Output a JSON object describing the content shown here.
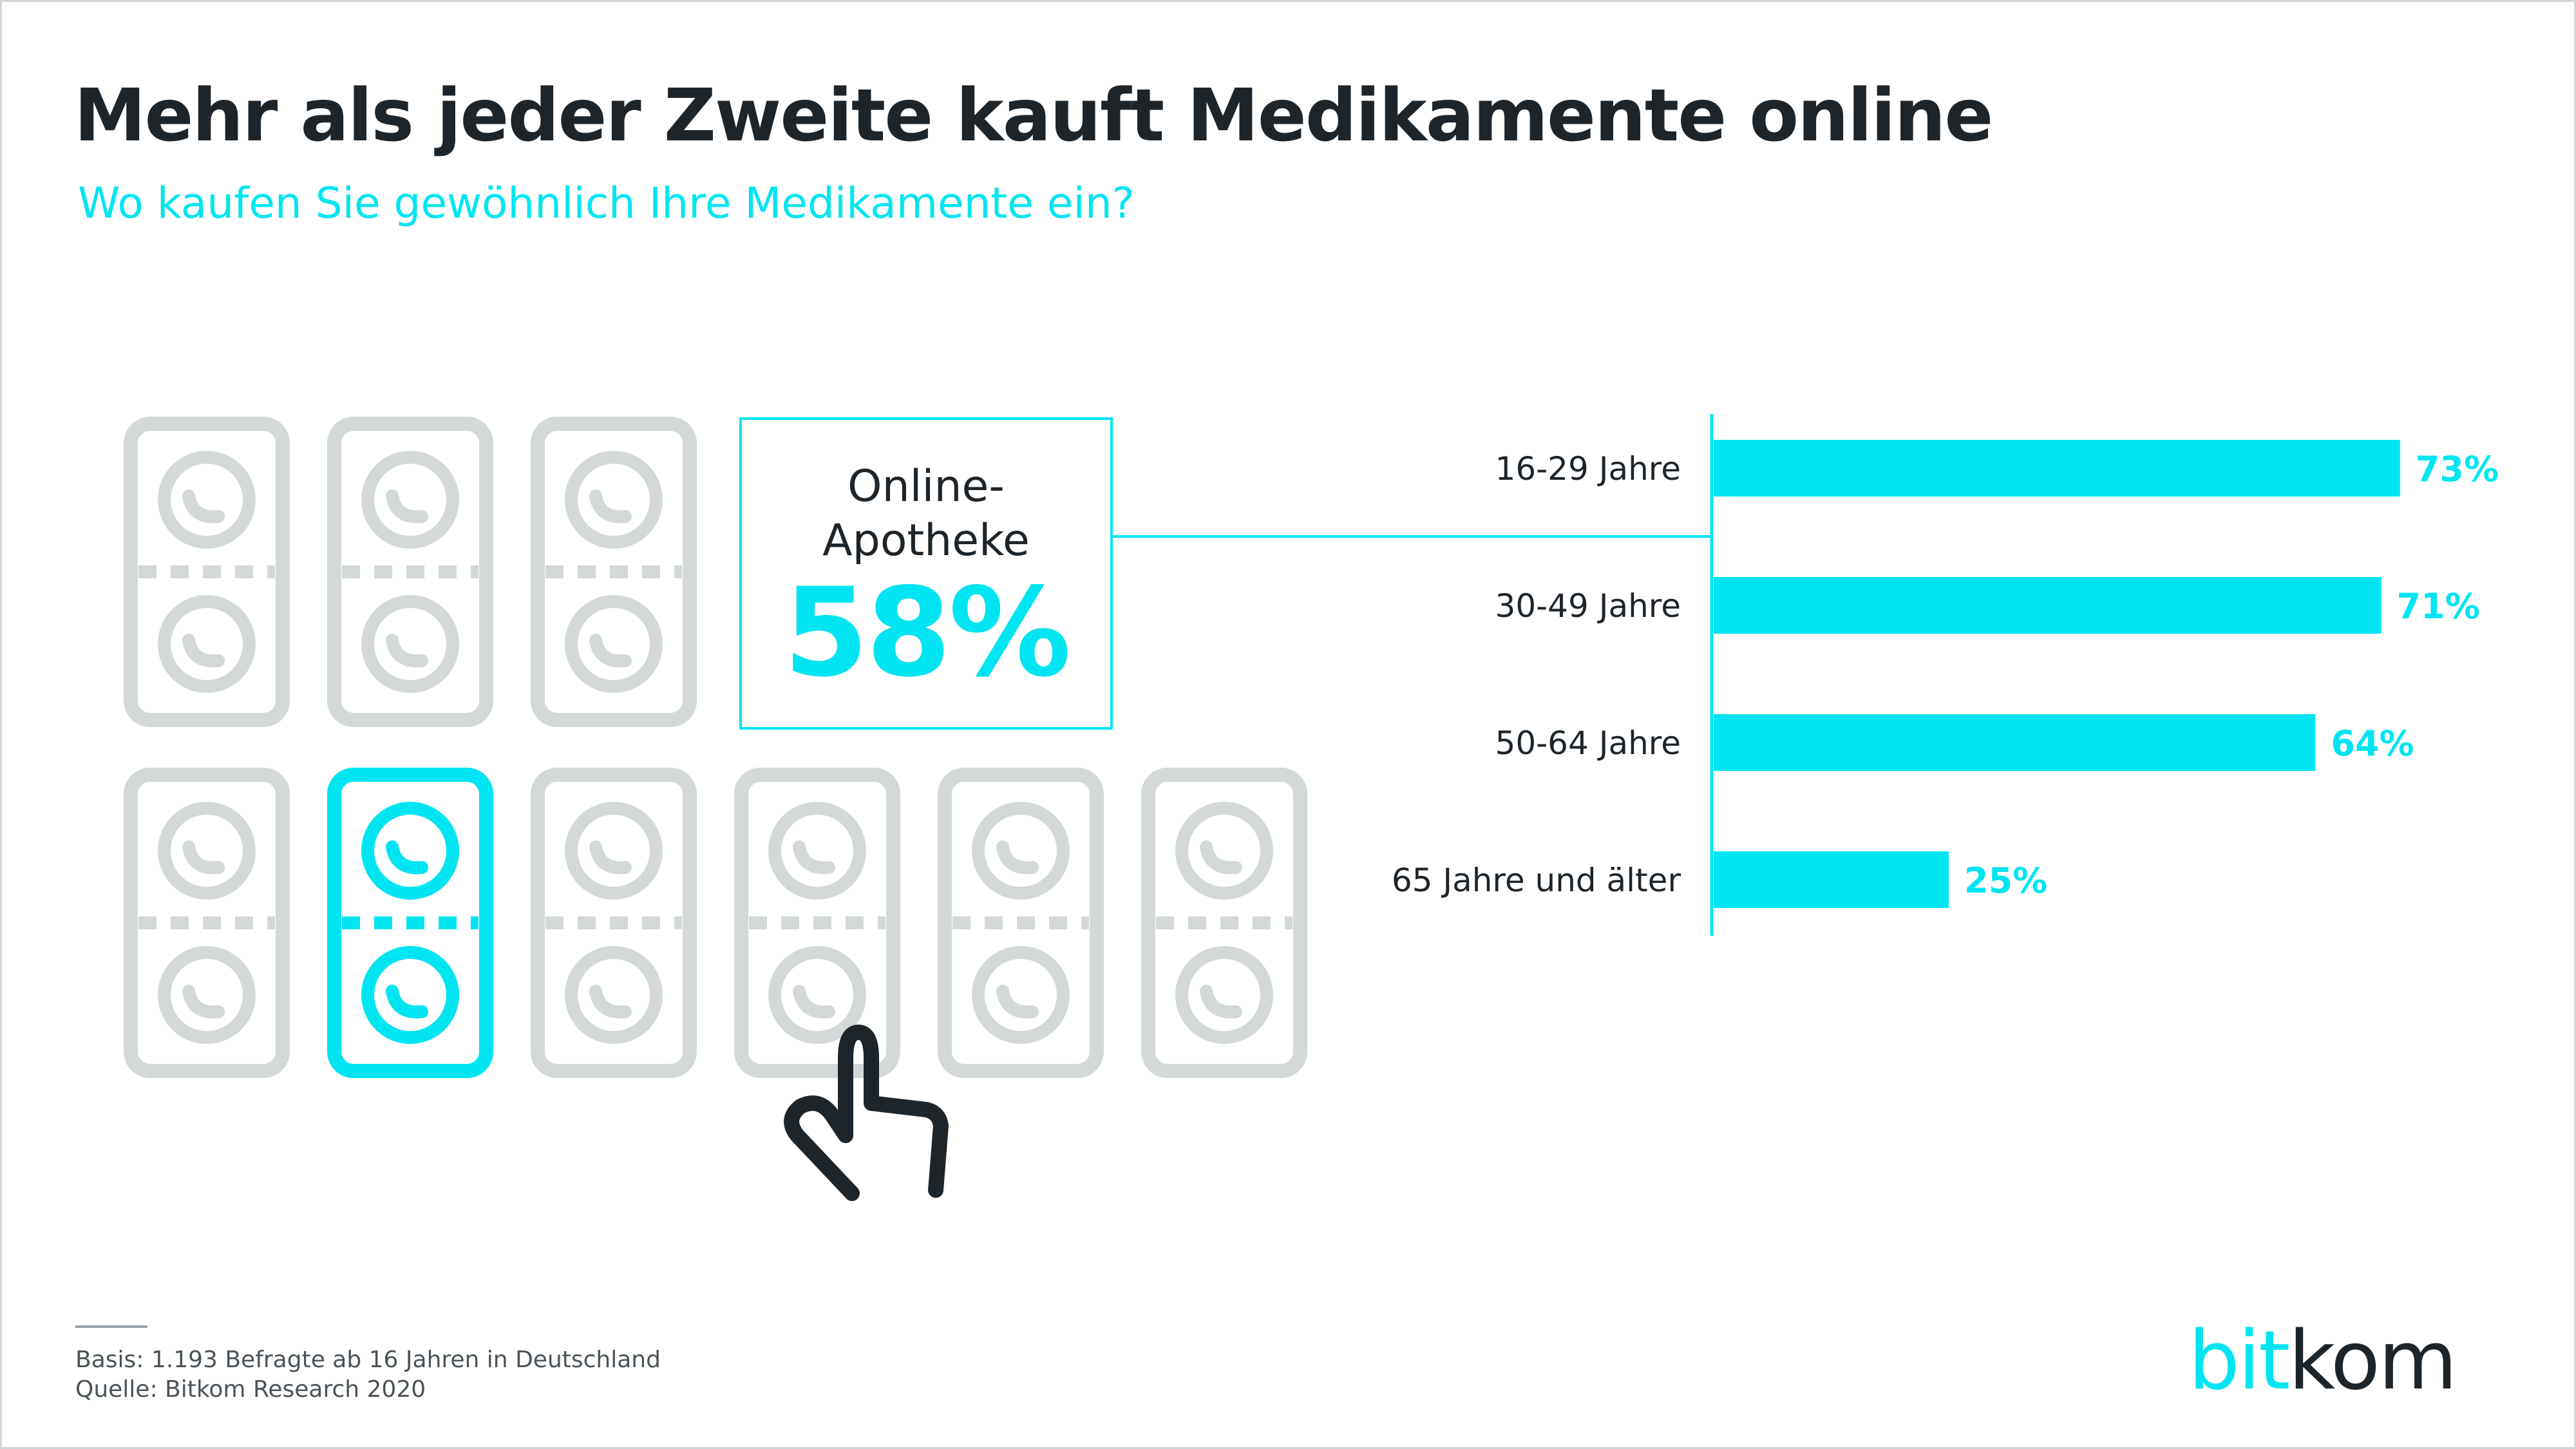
{
  "title": "Mehr als jeder Zweite kauft Medikamente online",
  "subtitle": "Wo kaufen Sie gewöhnlich Ihre Medikamente ein?",
  "callout": {
    "label": "Online-\nApotheke",
    "value": "58%"
  },
  "pictogram": {
    "icon": "pill-blister-icon",
    "total": 9,
    "highlighted": 1,
    "highlight_color": "#00e5f1",
    "base_color": "#d3d9d8",
    "cursor_icon": "pointing-hand-icon"
  },
  "chart_data": {
    "type": "bar",
    "orientation": "horizontal",
    "categories": [
      "16-29 Jahre",
      "30-49 Jahre",
      "50-64 Jahre",
      "65 Jahre und älter"
    ],
    "values": [
      73,
      71,
      64,
      25
    ],
    "value_labels": [
      "73%",
      "71%",
      "64%",
      "25%"
    ],
    "unit": "%",
    "xlim": [
      0,
      100
    ],
    "color": "#00e5f1"
  },
  "footnotes": {
    "basis": "Basis: 1.193 Befragte ab 16 Jahren in Deutschland",
    "source": "Quelle: Bitkom Research 2020"
  },
  "logo": {
    "part1": "bit",
    "part2": "kom"
  }
}
